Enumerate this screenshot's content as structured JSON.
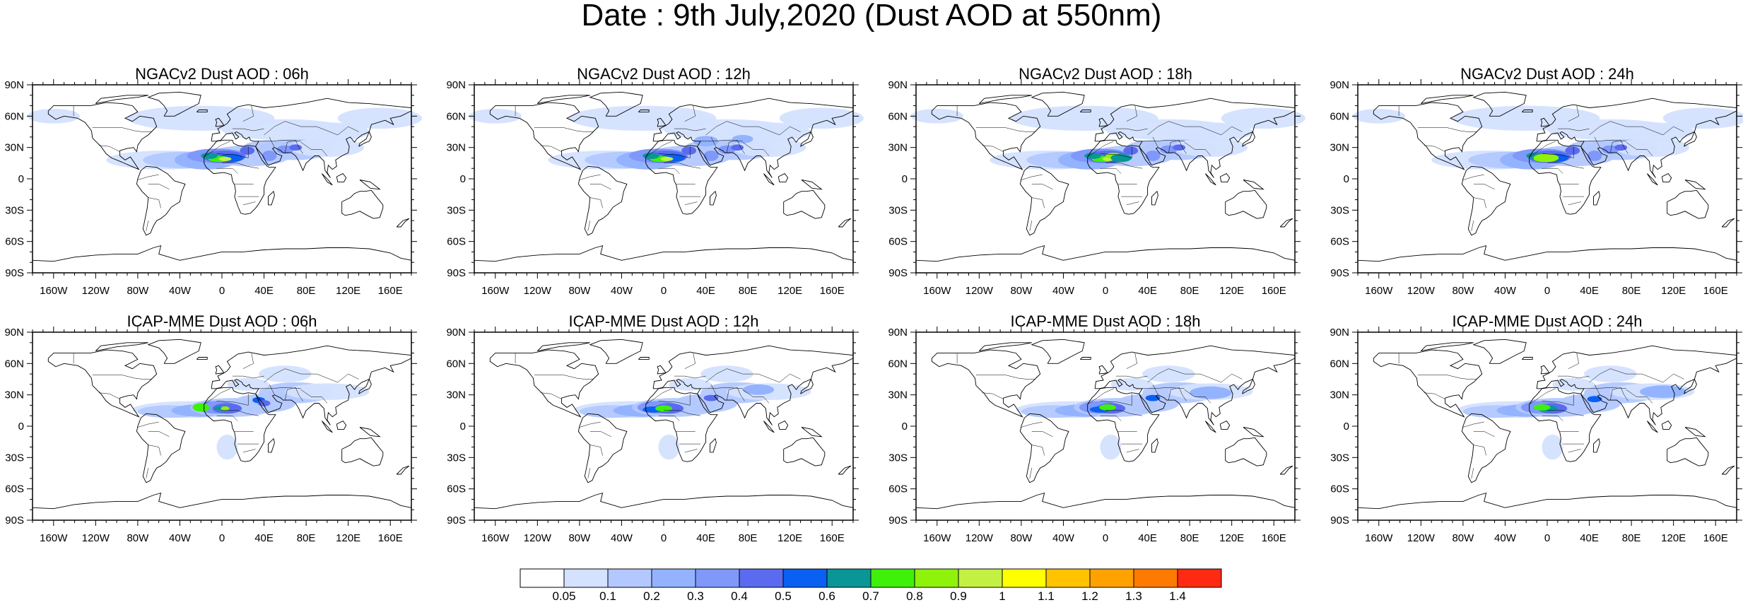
{
  "title": "Date : 9th July,2020 (Dust AOD at 550nm)",
  "panels": [
    {
      "title": "NGACv2 Dust AOD : 06h",
      "model": "NGACv2",
      "hour": 6
    },
    {
      "title": "NGACv2 Dust AOD : 12h",
      "model": "NGACv2",
      "hour": 12
    },
    {
      "title": "NGACv2 Dust AOD : 18h",
      "model": "NGACv2",
      "hour": 18
    },
    {
      "title": "NGACv2 Dust AOD : 24h",
      "model": "NGACv2",
      "hour": 24
    },
    {
      "title": "ICAP-MME Dust AOD : 06h",
      "model": "ICAP-MME",
      "hour": 6
    },
    {
      "title": "ICAP-MME Dust AOD : 12h",
      "model": "ICAP-MME",
      "hour": 12
    },
    {
      "title": "ICAP-MME Dust AOD : 18h",
      "model": "ICAP-MME",
      "hour": 18
    },
    {
      "title": "ICAP-MME Dust AOD : 24h",
      "model": "ICAP-MME",
      "hour": 24
    }
  ],
  "lat_ticks": [
    "90N",
    "60N",
    "30N",
    "0",
    "30S",
    "60S",
    "90S"
  ],
  "lon_ticks": [
    "160W",
    "120W",
    "80W",
    "40W",
    "0",
    "40E",
    "80E",
    "120E",
    "160E"
  ],
  "colorbar": {
    "levels": [
      "0.05",
      "0.1",
      "0.2",
      "0.3",
      "0.4",
      "0.5",
      "0.6",
      "0.7",
      "0.8",
      "0.9",
      "1",
      "1.1",
      "1.2",
      "1.3",
      "1.4"
    ],
    "colors": [
      "#ffffff",
      "#d4e1ff",
      "#b3c8ff",
      "#94b3ff",
      "#7f98fa",
      "#5a6bf0",
      "#0a60f2",
      "#0a9696",
      "#3ef00a",
      "#8ef20a",
      "#c3f043",
      "#ffff00",
      "#ffc300",
      "#ffa200",
      "#ff7a00",
      "#ff2a12"
    ]
  }
}
